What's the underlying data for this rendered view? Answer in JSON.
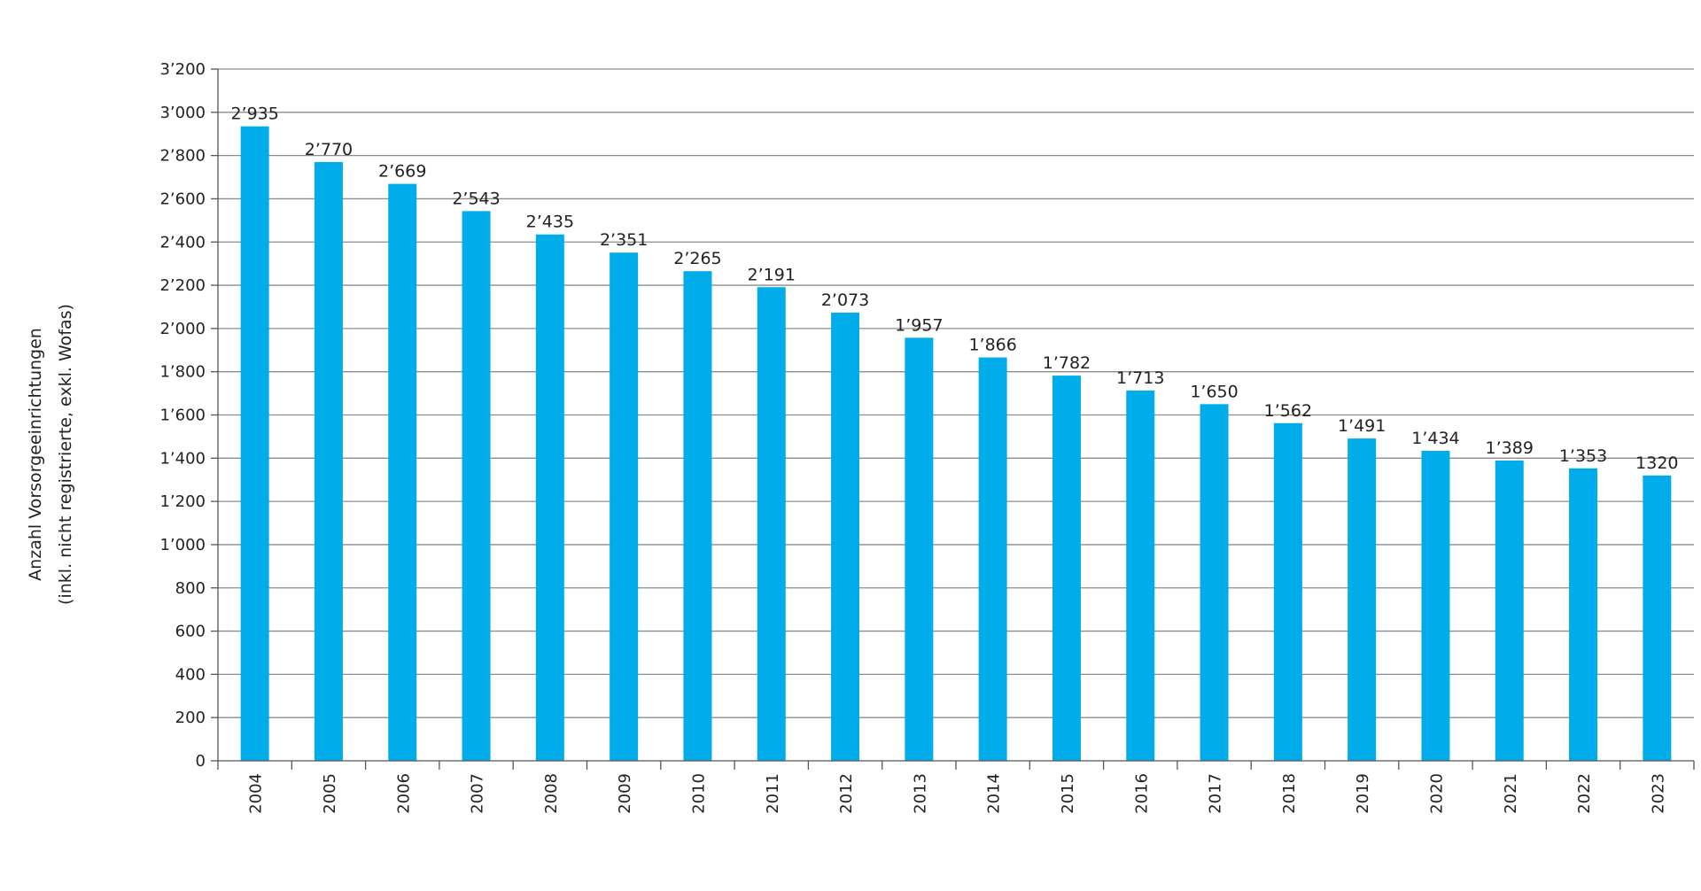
{
  "chart_data": {
    "type": "bar",
    "ylabel": "Anzahl Vorsorgeeinrichtungen",
    "ylabel_line2": "(inkl. nicht registrierte, exkl. Wofas)",
    "categories": [
      "2004",
      "2005",
      "2006",
      "2007",
      "2008",
      "2009",
      "2010",
      "2011",
      "2012",
      "2013",
      "2014",
      "2015",
      "2016",
      "2017",
      "2018",
      "2019",
      "2020",
      "2021",
      "2022",
      "2023"
    ],
    "values": [
      2935,
      2770,
      2669,
      2543,
      2435,
      2351,
      2265,
      2191,
      2073,
      1957,
      1866,
      1782,
      1713,
      1650,
      1562,
      1491,
      1434,
      1389,
      1353,
      1320
    ],
    "data_labels": [
      "2’935",
      "2’770",
      "2’669",
      "2’543",
      "2’435",
      "2’351",
      "2’265",
      "2’191",
      "2’073",
      "1’957",
      "1’866",
      "1’782",
      "1’713",
      "1’650",
      "1’562",
      "1’491",
      "1’434",
      "1’389",
      "1’353",
      "1320"
    ],
    "ylim": [
      0,
      3200
    ],
    "yticks": [
      0,
      200,
      400,
      600,
      800,
      1000,
      1200,
      1400,
      1600,
      1800,
      2000,
      2200,
      2400,
      2600,
      2800,
      3000,
      3200
    ],
    "ytick_labels": [
      "0",
      "200",
      "400",
      "600",
      "800",
      "1’000",
      "1’200",
      "1’400",
      "1’600",
      "1’800",
      "2’000",
      "2’200",
      "2’400",
      "2’600",
      "2’800",
      "3’000",
      "3’200"
    ],
    "grid": true,
    "legend": "none",
    "colors": {
      "bar": "#00ADEA",
      "grid": "#8C8C8C",
      "axis": "#555555"
    }
  }
}
